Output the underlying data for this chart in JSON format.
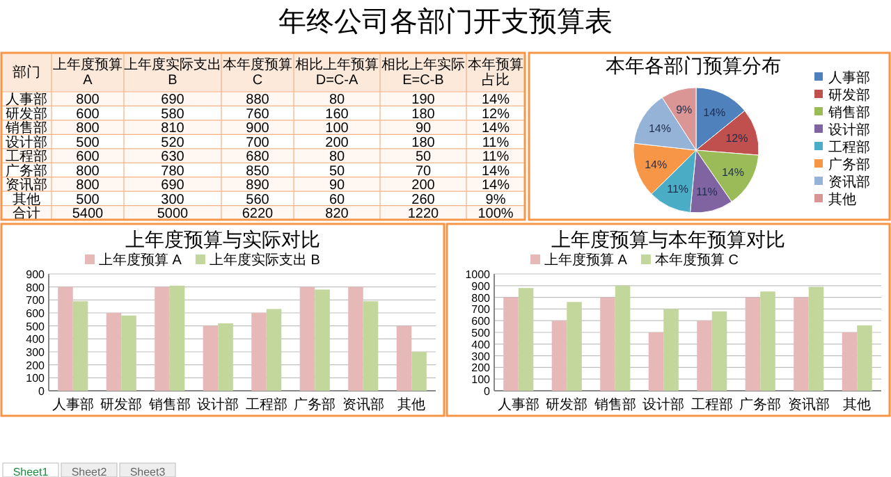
{
  "chart_data": [
    {
      "type": "other",
      "title": "年终公司各部门开支预算表",
      "ylabel": "部门",
      "categories": [
        "上年度预算\nA",
        "上年度实际支出\nB",
        "本年度预算\nC",
        "相比上年预算\nD=C-A",
        "相比上年实际\nE=C-B",
        "本年预算占比"
      ],
      "y_categories": [
        "人事部",
        "研发部",
        "销售部",
        "设计部",
        "工程部",
        "广务部",
        "资讯部",
        "其他",
        "合计"
      ],
      "cell_labels": [
        [
          "800",
          "690",
          "880",
          "80",
          "190",
          "14%"
        ],
        [
          "600",
          "580",
          "760",
          "160",
          "180",
          "12%"
        ],
        [
          "800",
          "810",
          "900",
          "100",
          "90",
          "14%"
        ],
        [
          "500",
          "520",
          "700",
          "200",
          "180",
          "11%"
        ],
        [
          "600",
          "630",
          "680",
          "80",
          "50",
          "11%"
        ],
        [
          "800",
          "780",
          "850",
          "50",
          "70",
          "14%"
        ],
        [
          "800",
          "690",
          "890",
          "90",
          "200",
          "14%"
        ],
        [
          "500",
          "300",
          "560",
          "60",
          "260",
          "9%"
        ],
        [
          "5400",
          "5000",
          "6220",
          "820",
          "1220",
          "100%"
        ]
      ],
      "annotations": [
        "Sheet1",
        "Sheet2",
        "Sheet3"
      ]
    },
    {
      "type": "pie",
      "title": "本年各部门预算分布",
      "categories": [
        "人事部",
        "研发部",
        "销售部",
        "设计部",
        "工程部",
        "广务部",
        "资讯部",
        "其他"
      ],
      "values": [
        14,
        12,
        14,
        11,
        11,
        14,
        14,
        9
      ],
      "colors": [
        "#4f81bd",
        "#c0504d",
        "#9bbb59",
        "#8064a2",
        "#4bacc6",
        "#f79646",
        "#95b3d7",
        "#d99694"
      ],
      "value_labels": [
        "14%",
        "12%",
        "14%",
        "11%",
        "11%",
        "14%",
        "14%",
        "9%"
      ],
      "legend": "right"
    },
    {
      "type": "bar",
      "title": "上年度预算与实际对比",
      "categories": [
        "人事部",
        "研发部",
        "销售部",
        "设计部",
        "工程部",
        "广务部",
        "资讯部",
        "其他"
      ],
      "series": [
        {
          "name": "上年度预算\nA",
          "color": "#e6b9b8",
          "values": [
            800,
            600,
            800,
            500,
            600,
            800,
            800,
            500
          ]
        },
        {
          "name": "上年度实际支出\nB",
          "color": "#c3d69b",
          "values": [
            690,
            580,
            810,
            520,
            630,
            780,
            690,
            300
          ]
        }
      ],
      "ylim": [
        0,
        900
      ],
      "yticks": [
        0,
        100,
        200,
        300,
        400,
        500,
        600,
        700,
        800,
        900
      ],
      "grid": "y",
      "legend": "top"
    },
    {
      "type": "bar",
      "title": "上年度预算与本年预算对比",
      "categories": [
        "人事部",
        "研发部",
        "销售部",
        "设计部",
        "工程部",
        "广务部",
        "资讯部",
        "其他"
      ],
      "series": [
        {
          "name": "上年度预算\nA",
          "color": "#e6b9b8",
          "values": [
            800,
            600,
            800,
            500,
            600,
            800,
            800,
            500
          ]
        },
        {
          "name": "本年度预算\nC",
          "color": "#c3d69b",
          "values": [
            880,
            760,
            900,
            700,
            680,
            850,
            890,
            560
          ]
        }
      ],
      "ylim": [
        0,
        1000
      ],
      "yticks": [
        0,
        100,
        200,
        300,
        400,
        500,
        600,
        700,
        800,
        900,
        1000
      ],
      "grid": "y",
      "legend": "top"
    }
  ]
}
